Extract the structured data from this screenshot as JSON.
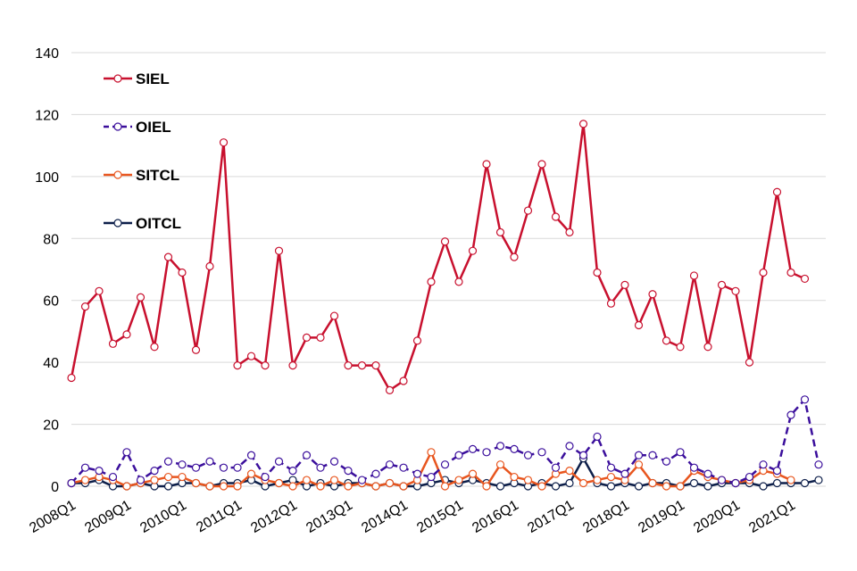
{
  "chart_data": {
    "type": "line",
    "ylim": [
      0,
      140
    ],
    "yticks": [
      "0",
      "20",
      "40",
      "60",
      "80",
      "100",
      "120",
      "140"
    ],
    "xtick_labels": [
      "2008Q1",
      "2009Q1",
      "2010Q1",
      "2011Q1",
      "2012Q1",
      "2013Q1",
      "2014Q1",
      "2015Q1",
      "2016Q1",
      "2017Q1",
      "2018Q1",
      "2019Q1",
      "2020Q1",
      "2021Q1"
    ],
    "grid": "horizontal",
    "legend_position": "top-left",
    "x": [
      "2008Q1",
      "2008Q2",
      "2008Q3",
      "2008Q4",
      "2009Q1",
      "2009Q2",
      "2009Q3",
      "2009Q4",
      "2010Q1",
      "2010Q2",
      "2010Q3",
      "2010Q4",
      "2011Q1",
      "2011Q2",
      "2011Q3",
      "2011Q4",
      "2012Q1",
      "2012Q2",
      "2012Q3",
      "2012Q4",
      "2013Q1",
      "2013Q2",
      "2013Q3",
      "2013Q4",
      "2014Q1",
      "2014Q2",
      "2014Q3",
      "2014Q4",
      "2015Q1",
      "2015Q2",
      "2015Q3",
      "2015Q4",
      "2016Q1",
      "2016Q2",
      "2016Q3",
      "2016Q4",
      "2017Q1",
      "2017Q2",
      "2017Q3",
      "2017Q4",
      "2018Q1",
      "2018Q2",
      "2018Q3",
      "2018Q4",
      "2019Q1",
      "2019Q2",
      "2019Q3",
      "2019Q4",
      "2020Q1",
      "2020Q2",
      "2020Q3",
      "2020Q4",
      "2021Q1",
      "2021Q2",
      "2021Q3"
    ],
    "series": [
      {
        "name": "SIEL",
        "color": "#c8102e",
        "dash": "solid",
        "values": [
          35,
          58,
          63,
          46,
          49,
          61,
          45,
          74,
          69,
          44,
          71,
          111,
          39,
          42,
          39,
          76,
          39,
          48,
          48,
          55,
          39,
          39,
          39,
          31,
          34,
          47,
          66,
          79,
          66,
          76,
          104,
          82,
          74,
          89,
          104,
          87,
          82,
          117,
          69,
          59,
          65,
          52,
          62,
          47,
          45,
          68,
          45,
          65,
          63,
          40,
          69,
          95,
          69,
          67,
          null
        ]
      },
      {
        "name": "OIEL",
        "color": "#3b0f9c",
        "dash": "dashed",
        "values": [
          1,
          6,
          5,
          3,
          11,
          2,
          5,
          8,
          7,
          6,
          8,
          6,
          6,
          10,
          3,
          8,
          5,
          10,
          6,
          8,
          5,
          2,
          4,
          7,
          6,
          4,
          3,
          7,
          10,
          12,
          11,
          13,
          12,
          10,
          11,
          6,
          13,
          10,
          16,
          6,
          4,
          10,
          10,
          8,
          11,
          6,
          4,
          2,
          1,
          3,
          7,
          5,
          23,
          28,
          7
        ]
      },
      {
        "name": "SITCL",
        "color": "#e8561f",
        "dash": "solid",
        "values": [
          1,
          2,
          3,
          2,
          0,
          1,
          2,
          3,
          3,
          1,
          0,
          0,
          0,
          4,
          2,
          1,
          0,
          2,
          0,
          2,
          0,
          1,
          0,
          1,
          0,
          2,
          11,
          0,
          2,
          4,
          0,
          7,
          3,
          2,
          0,
          4,
          5,
          1,
          2,
          3,
          2,
          7,
          1,
          0,
          0,
          5,
          3,
          2,
          1,
          2,
          5,
          4,
          2,
          null,
          null
        ]
      },
      {
        "name": "OITCL",
        "color": "#0d1f4a",
        "dash": "solid",
        "values": [
          1,
          1,
          2,
          0,
          0,
          1,
          0,
          0,
          1,
          1,
          0,
          1,
          1,
          2,
          0,
          1,
          2,
          0,
          1,
          0,
          1,
          1,
          0,
          1,
          0,
          0,
          1,
          2,
          1,
          2,
          1,
          0,
          1,
          0,
          1,
          0,
          1,
          9,
          1,
          0,
          1,
          0,
          1,
          1,
          0,
          1,
          0,
          1,
          1,
          1,
          0,
          1,
          1,
          1,
          2
        ]
      }
    ]
  }
}
